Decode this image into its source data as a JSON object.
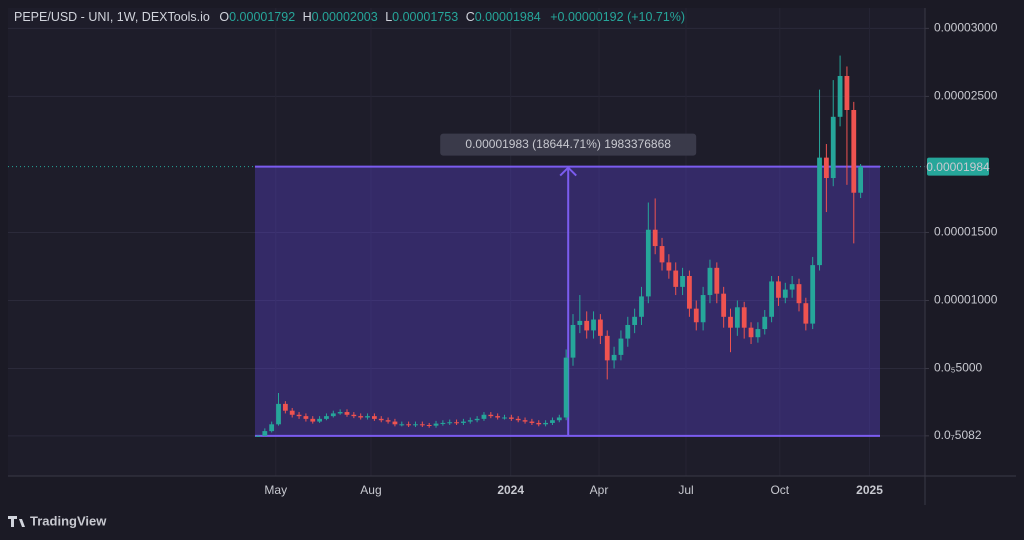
{
  "chart_data": {
    "type": "candlestick",
    "title": "PEPE/USD - UNI, 1W, DEXTools.io",
    "ohlc_keys": [
      "O",
      "H",
      "L",
      "C"
    ],
    "change": "+0.00000192 (+10.71%)",
    "measure_label": "0.00001983 (18644.71%) 1983376868",
    "branding": "TradingView",
    "up_color": "#26a69a",
    "down_color": "#ef5350",
    "open": [
      1e-08,
      5e-08,
      4e-07,
      9e-07,
      2.4e-06,
      1.9e-06,
      1.6e-06,
      1.5e-06,
      1.3e-06,
      1.1e-06,
      1.3e-06,
      1.5e-06,
      1.7e-06,
      1.8e-06,
      1.6e-06,
      1.5e-06,
      1.4e-06,
      1.5e-06,
      1.3e-06,
      1.2e-06,
      1.1e-06,
      9e-07,
      9e-07,
      8.5e-07,
      9e-07,
      8.5e-07,
      8e-07,
      9.5e-07,
      1e-06,
      1.05e-06,
      1e-06,
      1.1e-06,
      1.2e-06,
      1.3e-06,
      1.6e-06,
      1.5e-06,
      1.4e-06,
      1.4e-06,
      1.3e-06,
      1.2e-06,
      1.1e-06,
      1e-06,
      9e-07,
      1e-06,
      1.2e-06,
      1.4e-06,
      5.8e-06,
      8.2e-06,
      8.5e-06,
      7.8e-06,
      8.6e-06,
      7.4e-06,
      5.6e-06,
      6e-06,
      7.2e-06,
      8.2e-06,
      8.8e-06,
      1.03e-05,
      1.52e-05,
      1.4e-05,
      1.28e-05,
      1.22e-05,
      1.1e-05,
      1.18e-05,
      9.4e-06,
      8.4e-06,
      1.04e-05,
      1.24e-05,
      1.05e-05,
      8.8e-06,
      8e-06,
      9.5e-06,
      8e-06,
      7.3e-06,
      7.9e-06,
      8.8e-06,
      1.14e-05,
      1.02e-05,
      1.08e-05,
      1.12e-05,
      9.8e-06,
      8.3e-06,
      1.26e-05,
      2.05e-05,
      1.9e-05,
      2.35e-05,
      2.65e-05,
      2.4e-05,
      1.792e-05
    ],
    "high": [
      1e-07,
      6e-07,
      1.1e-06,
      3.2e-06,
      2.6e-06,
      2.1e-06,
      1.8e-06,
      1.7e-06,
      1.5e-06,
      1.5e-06,
      1.7e-06,
      1.9e-06,
      2e-06,
      2e-06,
      1.8e-06,
      1.7e-06,
      1.7e-06,
      1.7e-06,
      1.5e-06,
      1.4e-06,
      1.3e-06,
      1.1e-06,
      1.1e-06,
      1.1e-06,
      1.1e-06,
      1e-06,
      1.15e-06,
      1.2e-06,
      1.25e-06,
      1.25e-06,
      1.3e-06,
      1.4e-06,
      1.5e-06,
      1.8e-06,
      1.8e-06,
      1.7e-06,
      1.6e-06,
      1.6e-06,
      1.5e-06,
      1.4e-06,
      1.3e-06,
      1.2e-06,
      1.2e-06,
      1.4e-06,
      1.6e-06,
      6.4e-06,
      9e-06,
      1.04e-05,
      9.2e-06,
      9.2e-06,
      9e-06,
      7.8e-06,
      6.6e-06,
      7.8e-06,
      8.8e-06,
      9.4e-06,
      1.1e-05,
      1.72e-05,
      1.75e-05,
      1.46e-05,
      1.34e-05,
      1.28e-05,
      1.24e-05,
      1.22e-05,
      1e-05,
      1.1e-05,
      1.3e-05,
      1.28e-05,
      1.1e-05,
      9.4e-06,
      1e-05,
      9.9e-06,
      8.4e-06,
      8.4e-06,
      9.3e-06,
      1.18e-05,
      1.18e-05,
      1.13e-05,
      1.18e-05,
      1.16e-05,
      1.02e-05,
      1.32e-05,
      2.55e-05,
      2.15e-05,
      2.62e-05,
      2.8e-05,
      2.72e-05,
      2.46e-05,
      2.003e-05
    ],
    "low": [
      0,
      3e-08,
      3e-07,
      8e-07,
      1.7e-06,
      1.4e-06,
      1.3e-06,
      1.1e-06,
      9.5e-07,
      1e-06,
      1.2e-06,
      1.4e-06,
      1.6e-06,
      1.45e-06,
      1.35e-06,
      1.25e-06,
      1.25e-06,
      1.15e-06,
      1.05e-06,
      9.5e-07,
      7.5e-07,
      7.5e-07,
      7e-07,
      7e-07,
      7e-07,
      6.5e-07,
      6.5e-07,
      8e-07,
      8.5e-07,
      8.5e-07,
      8.5e-07,
      9.5e-07,
      1.05e-06,
      1.15e-06,
      1.35e-06,
      1.25e-06,
      1.25e-06,
      1.15e-06,
      1.05e-06,
      9.5e-07,
      8.5e-07,
      7.5e-07,
      7.5e-07,
      8.5e-07,
      1.05e-06,
      1.2e-06,
      5.2e-06,
      7.6e-06,
      7.2e-06,
      7.2e-06,
      6.8e-06,
      4.2e-06,
      5e-06,
      5.6e-06,
      6.6e-06,
      7.6e-06,
      8.2e-06,
      9.8e-06,
      1.34e-05,
      1.22e-05,
      1.16e-05,
      1.04e-05,
      1.04e-05,
      8.8e-06,
      7.8e-06,
      7.8e-06,
      9.8e-06,
      9.8e-06,
      8e-06,
      6.2e-06,
      7.4e-06,
      7.2e-06,
      6.8e-06,
      6.9e-06,
      7.5e-06,
      8.4e-06,
      9.6e-06,
      9.8e-06,
      1.02e-05,
      9.2e-06,
      7.8e-06,
      7.9e-06,
      1.22e-05,
      1.65e-05,
      1.84e-05,
      2.28e-05,
      1.85e-05,
      1.42e-05,
      1.753e-05
    ],
    "close": [
      5e-08,
      4e-07,
      9e-07,
      2.4e-06,
      1.9e-06,
      1.6e-06,
      1.5e-06,
      1.3e-06,
      1.1e-06,
      1.3e-06,
      1.5e-06,
      1.7e-06,
      1.8e-06,
      1.6e-06,
      1.5e-06,
      1.4e-06,
      1.5e-06,
      1.3e-06,
      1.2e-06,
      1.1e-06,
      9e-07,
      9e-07,
      8.5e-07,
      9e-07,
      8.5e-07,
      8e-07,
      9.5e-07,
      1e-06,
      1.05e-06,
      1e-06,
      1.1e-06,
      1.2e-06,
      1.3e-06,
      1.6e-06,
      1.5e-06,
      1.4e-06,
      1.4e-06,
      1.3e-06,
      1.2e-06,
      1.1e-06,
      1e-06,
      9e-07,
      1e-06,
      1.2e-06,
      1.4e-06,
      5.8e-06,
      8.2e-06,
      8.5e-06,
      7.8e-06,
      8.6e-06,
      7.4e-06,
      5.6e-06,
      6e-06,
      7.2e-06,
      8.2e-06,
      8.8e-06,
      1.03e-05,
      1.52e-05,
      1.4e-05,
      1.28e-05,
      1.22e-05,
      1.1e-05,
      1.18e-05,
      9.4e-06,
      8.4e-06,
      1.04e-05,
      1.24e-05,
      1.05e-05,
      8.8e-06,
      8e-06,
      9.5e-06,
      8e-06,
      7.3e-06,
      7.9e-06,
      8.8e-06,
      1.14e-05,
      1.02e-05,
      1.08e-05,
      1.12e-05,
      9.8e-06,
      8.3e-06,
      1.26e-05,
      2.05e-05,
      1.9e-05,
      2.35e-05,
      2.65e-05,
      2.4e-05,
      1.792e-05,
      1.984e-05
    ],
    "xlim": [
      -36.5,
      97.4
    ],
    "xticks": [
      {
        "value": 2.6,
        "label": "May"
      },
      {
        "value": 16.5,
        "label": "Aug"
      },
      {
        "value": 36.9,
        "label": "2024"
      },
      {
        "value": 49.8,
        "label": "Apr"
      },
      {
        "value": 62.5,
        "label": "Jul"
      },
      {
        "value": 76.2,
        "label": "Oct"
      },
      {
        "value": 89.3,
        "label": "2025"
      }
    ],
    "ylim": [
      -2.9e-06,
      3.135e-05
    ],
    "yticks": [
      {
        "value": 5.082e-08,
        "label": "0.0₇5082"
      },
      {
        "value": 5e-06,
        "label": "0.0₅5000"
      },
      {
        "value": 1e-05,
        "label": "0.00001000"
      },
      {
        "value": 1.5e-05,
        "label": "0.00001500"
      },
      {
        "value": 2.5e-05,
        "label": "0.00002500"
      },
      {
        "value": 3e-05,
        "label": "0.00003000"
      }
    ],
    "grid": true
  }
}
